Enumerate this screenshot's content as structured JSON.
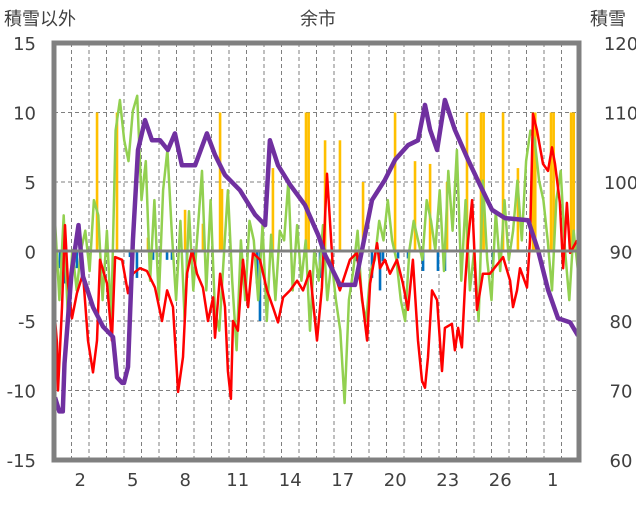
{
  "chart_data": {
    "type": "line",
    "title": "余市",
    "ylabel_left": "積雪以外",
    "ylabel_right": "積雪",
    "x_unit": "days",
    "xlim": [
      0,
      30
    ],
    "x_tick_labels": [
      "2",
      "5",
      "8",
      "11",
      "14",
      "17",
      "20",
      "23",
      "26",
      "1"
    ],
    "x_tick_days": [
      1.5,
      4.5,
      7.5,
      10.5,
      13.5,
      16.5,
      19.5,
      22.5,
      25.5,
      28.5
    ],
    "ylim_left": [
      -15,
      15
    ],
    "y_ticks_left": [
      "15",
      "10",
      "5",
      "0",
      "-5",
      "-10",
      "-15"
    ],
    "ylim_right": [
      60,
      120
    ],
    "y_ticks_right": [
      "120",
      "110",
      "100",
      "90",
      "80",
      "70",
      "60"
    ],
    "grid": true,
    "colors": {
      "red": "#FF0000",
      "green": "#92D050",
      "purple": "#7030A0",
      "orange": "#FFC000",
      "blue": "#0070C0",
      "frame": "#808080"
    },
    "series": [
      {
        "name": "red",
        "axis": "left",
        "points": [
          [
            0,
            -4
          ],
          [
            0.17,
            -6.6
          ],
          [
            0.23,
            -10
          ],
          [
            0.46,
            -4
          ],
          [
            0.63,
            1.9
          ],
          [
            0.8,
            -2.3
          ],
          [
            1.03,
            -4.8
          ],
          [
            1.31,
            -3
          ],
          [
            1.66,
            -1.6
          ],
          [
            1.94,
            -6.4
          ],
          [
            2.23,
            -8.7
          ],
          [
            2.46,
            -6.4
          ],
          [
            2.63,
            -0.6
          ],
          [
            3.03,
            -2.3
          ],
          [
            3.31,
            -6.4
          ],
          [
            3.49,
            -0.4
          ],
          [
            3.89,
            -0.6
          ],
          [
            4.23,
            -3
          ],
          [
            4.51,
            -1.6
          ],
          [
            4.91,
            -1.2
          ],
          [
            5.31,
            -1.4
          ],
          [
            5.77,
            -2.6
          ],
          [
            6.17,
            -5
          ],
          [
            6.46,
            -2.8
          ],
          [
            6.8,
            -4
          ],
          [
            7.03,
            -8.8
          ],
          [
            7.09,
            -10.1
          ],
          [
            7.37,
            -7.6
          ],
          [
            7.6,
            -1.6
          ],
          [
            7.89,
            0.1
          ],
          [
            8.17,
            -1.6
          ],
          [
            8.51,
            -2.6
          ],
          [
            8.8,
            -5
          ],
          [
            9.09,
            -3.3
          ],
          [
            9.2,
            -6.2
          ],
          [
            9.49,
            -1.6
          ],
          [
            9.77,
            -4
          ],
          [
            9.94,
            -8.6
          ],
          [
            10.11,
            -10.6
          ],
          [
            10.23,
            -5
          ],
          [
            10.51,
            -5.7
          ],
          [
            10.8,
            -0.6
          ],
          [
            11.09,
            -4
          ],
          [
            11.37,
            -0.1
          ],
          [
            11.77,
            -0.6
          ],
          [
            12.17,
            -2.8
          ],
          [
            12.51,
            -4
          ],
          [
            12.8,
            -5.1
          ],
          [
            13.09,
            -3.3
          ],
          [
            13.49,
            -2.8
          ],
          [
            13.89,
            -2.1
          ],
          [
            14.23,
            -2.8
          ],
          [
            14.63,
            -1.4
          ],
          [
            15.03,
            -6.4
          ],
          [
            15.31,
            -2.6
          ],
          [
            15.6,
            5.6
          ],
          [
            15.94,
            -1.2
          ],
          [
            16.34,
            -2.8
          ],
          [
            16.91,
            -0.6
          ],
          [
            17.31,
            -0.1
          ],
          [
            17.66,
            -4
          ],
          [
            17.89,
            -6.4
          ],
          [
            18.06,
            -2.3
          ],
          [
            18.46,
            0.6
          ],
          [
            18.63,
            -1.2
          ],
          [
            18.91,
            -0.6
          ],
          [
            19.2,
            -1.6
          ],
          [
            19.6,
            -0.6
          ],
          [
            19.94,
            -2.3
          ],
          [
            20.23,
            -4.2
          ],
          [
            20.51,
            -0.6
          ],
          [
            20.8,
            -6.4
          ],
          [
            21.03,
            -9.3
          ],
          [
            21.2,
            -9.8
          ],
          [
            21.37,
            -7.6
          ],
          [
            21.6,
            -2.8
          ],
          [
            21.89,
            -3.5
          ],
          [
            22.17,
            -8.6
          ],
          [
            22.34,
            -5.5
          ],
          [
            22.74,
            -5.2
          ],
          [
            22.91,
            -7.1
          ],
          [
            23.09,
            -5.5
          ],
          [
            23.31,
            -6.9
          ],
          [
            23.49,
            -2.3
          ],
          [
            23.66,
            0.8
          ],
          [
            23.89,
            3.7
          ],
          [
            24.17,
            -4.2
          ],
          [
            24.51,
            -1.6
          ],
          [
            24.91,
            -1.6
          ],
          [
            25.66,
            -0.4
          ],
          [
            26.06,
            -2.1
          ],
          [
            26.23,
            -4
          ],
          [
            26.46,
            -2.8
          ],
          [
            26.63,
            -1.2
          ],
          [
            27.03,
            -2.6
          ],
          [
            27.2,
            0.8
          ],
          [
            27.37,
            9.9
          ],
          [
            27.6,
            8.7
          ],
          [
            27.94,
            6.3
          ],
          [
            28.23,
            5.8
          ],
          [
            28.46,
            7.5
          ],
          [
            28.63,
            6.3
          ],
          [
            28.91,
            3.5
          ],
          [
            29.09,
            -1.2
          ],
          [
            29.31,
            3.5
          ],
          [
            29.49,
            -0.1
          ],
          [
            29.89,
            0.8
          ]
        ]
      },
      {
        "name": "green",
        "axis": "left",
        "x_range": [
          0.06,
          29.94
        ],
        "values": [
          2.2,
          -3.5,
          2.6,
          -5,
          0.1,
          -2.8,
          0.1,
          1.5,
          -1.4,
          3.7,
          2.6,
          -3.5,
          1.5,
          -5,
          8.7,
          10.9,
          8,
          6.5,
          10.1,
          11.2,
          3.7,
          6.5,
          -2.1,
          3.7,
          -3.5,
          4.4,
          7.3,
          1.5,
          -3.5,
          2.2,
          -5,
          2.9,
          -2.8,
          1.5,
          5.8,
          -2.8,
          3.7,
          -4.2,
          -5.7,
          -0.6,
          4.4,
          -2.1,
          -7.1,
          0.8,
          -3.5,
          2.2,
          0.8,
          -3.5,
          1.9,
          -5,
          1.2,
          -3.5,
          1.5,
          0.8,
          5.1,
          -2.8,
          1.9,
          -2.1,
          0.8,
          -5.7,
          0.1,
          -2.1,
          1.9,
          -3.5,
          -0.6,
          -3.5,
          -5.7,
          -10.9,
          -3.5,
          -1.4,
          1.5,
          -3.5,
          -5,
          -1.4,
          -0.6,
          2.2,
          0.8,
          3.7,
          0.8,
          -0.6,
          -3.5,
          -5,
          0.1,
          2.2,
          0.8,
          -0.6,
          3.7,
          2.2,
          0.1,
          4.4,
          -1.4,
          5.8,
          1.5,
          7.3,
          -2.1,
          3.7,
          -2.8,
          0.1,
          -5,
          5.1,
          -0.6,
          -3.5,
          2.9,
          -1.4,
          3.7,
          -0.6,
          1.5,
          5.1,
          0.8,
          6.5,
          8.7,
          8,
          5.1,
          3.7,
          0.8,
          -2.8,
          3.7,
          5.8,
          0.1,
          -3.5,
          1.5,
          -1.4
        ]
      },
      {
        "name": "purple",
        "axis": "right",
        "points": [
          [
            0.06,
            69
          ],
          [
            0.3,
            67
          ],
          [
            0.5,
            67
          ],
          [
            0.6,
            73.9
          ],
          [
            1.0,
            86.9
          ],
          [
            1.4,
            93.8
          ],
          [
            1.66,
            86.4
          ],
          [
            2.23,
            82
          ],
          [
            2.8,
            79.2
          ],
          [
            3.37,
            77.7
          ],
          [
            3.6,
            71.9
          ],
          [
            3.89,
            71.1
          ],
          [
            4.0,
            71.1
          ],
          [
            4.23,
            73.4
          ],
          [
            4.51,
            91.6
          ],
          [
            4.8,
            104.6
          ],
          [
            5.2,
            108.9
          ],
          [
            5.6,
            106
          ],
          [
            6.06,
            106
          ],
          [
            6.51,
            104.6
          ],
          [
            6.91,
            107
          ],
          [
            7.31,
            102.4
          ],
          [
            8.06,
            102.4
          ],
          [
            8.74,
            107
          ],
          [
            9.2,
            103.9
          ],
          [
            9.77,
            101
          ],
          [
            10.63,
            98.8
          ],
          [
            11.49,
            95.3
          ],
          [
            12.06,
            93.8
          ],
          [
            12.34,
            106
          ],
          [
            12.8,
            102.4
          ],
          [
            13.49,
            99.6
          ],
          [
            14.34,
            96.7
          ],
          [
            15.09,
            92.4
          ],
          [
            15.49,
            89.5
          ],
          [
            16.34,
            85.2
          ],
          [
            17.2,
            85.2
          ],
          [
            17.6,
            90.2
          ],
          [
            18.17,
            97.4
          ],
          [
            18.91,
            100.3
          ],
          [
            19.49,
            103.2
          ],
          [
            20.23,
            105.3
          ],
          [
            20.8,
            106
          ],
          [
            21.2,
            111.1
          ],
          [
            21.49,
            107.5
          ],
          [
            21.89,
            104.6
          ],
          [
            22.34,
            111.8
          ],
          [
            22.91,
            107.5
          ],
          [
            23.66,
            103.2
          ],
          [
            24.34,
            99.6
          ],
          [
            25.03,
            96
          ],
          [
            25.77,
            94.8
          ],
          [
            27.09,
            94.5
          ],
          [
            27.66,
            90.2
          ],
          [
            28.23,
            84.5
          ],
          [
            28.8,
            80.4
          ],
          [
            29.49,
            79.8
          ],
          [
            29.94,
            77.9
          ]
        ]
      },
      {
        "name": "orange",
        "type": "bar",
        "axis": "left",
        "points": [
          [
            2.46,
            10
          ],
          [
            3.6,
            10
          ],
          [
            5.37,
            1
          ],
          [
            7.49,
            3
          ],
          [
            8.51,
            2
          ],
          [
            9.49,
            10
          ],
          [
            9.6,
            4.5
          ],
          [
            12.51,
            6
          ],
          [
            14.4,
            10
          ],
          [
            14.55,
            10
          ],
          [
            15.49,
            8
          ],
          [
            16.34,
            8
          ],
          [
            17.66,
            5
          ],
          [
            19.49,
            10
          ],
          [
            20.63,
            6.5
          ],
          [
            21.49,
            6.3
          ],
          [
            22.46,
            5
          ],
          [
            23.6,
            10
          ],
          [
            24.4,
            10
          ],
          [
            24.55,
            10
          ],
          [
            25.66,
            10
          ],
          [
            26.51,
            6
          ],
          [
            27.37,
            10
          ],
          [
            27.5,
            10
          ],
          [
            28.4,
            10
          ],
          [
            28.55,
            10
          ],
          [
            29.55,
            10
          ],
          [
            29.7,
            10
          ]
        ]
      },
      {
        "name": "blue",
        "type": "bar",
        "axis": "left",
        "points": [
          [
            0.34,
            -1.2
          ],
          [
            0.63,
            -2.3
          ],
          [
            1.31,
            -1.2
          ],
          [
            4.34,
            -0.4
          ],
          [
            4.74,
            -1.9
          ],
          [
            5.66,
            -0.6
          ],
          [
            6.46,
            -0.6
          ],
          [
            6.74,
            -0.6
          ],
          [
            7.6,
            -1.9
          ],
          [
            8.06,
            -1.2
          ],
          [
            11.6,
            -2.3
          ],
          [
            11.77,
            -5
          ],
          [
            15.2,
            -1.9
          ],
          [
            17.31,
            -0.7
          ],
          [
            18.17,
            -1.9
          ],
          [
            18.63,
            -2.8
          ],
          [
            18.8,
            -0.7
          ],
          [
            19.66,
            -0.5
          ],
          [
            20.23,
            -0.5
          ],
          [
            21.09,
            -1.4
          ],
          [
            21.94,
            -1.4
          ],
          [
            22.34,
            -1.4
          ],
          [
            25.09,
            -1.4
          ]
        ]
      }
    ]
  }
}
